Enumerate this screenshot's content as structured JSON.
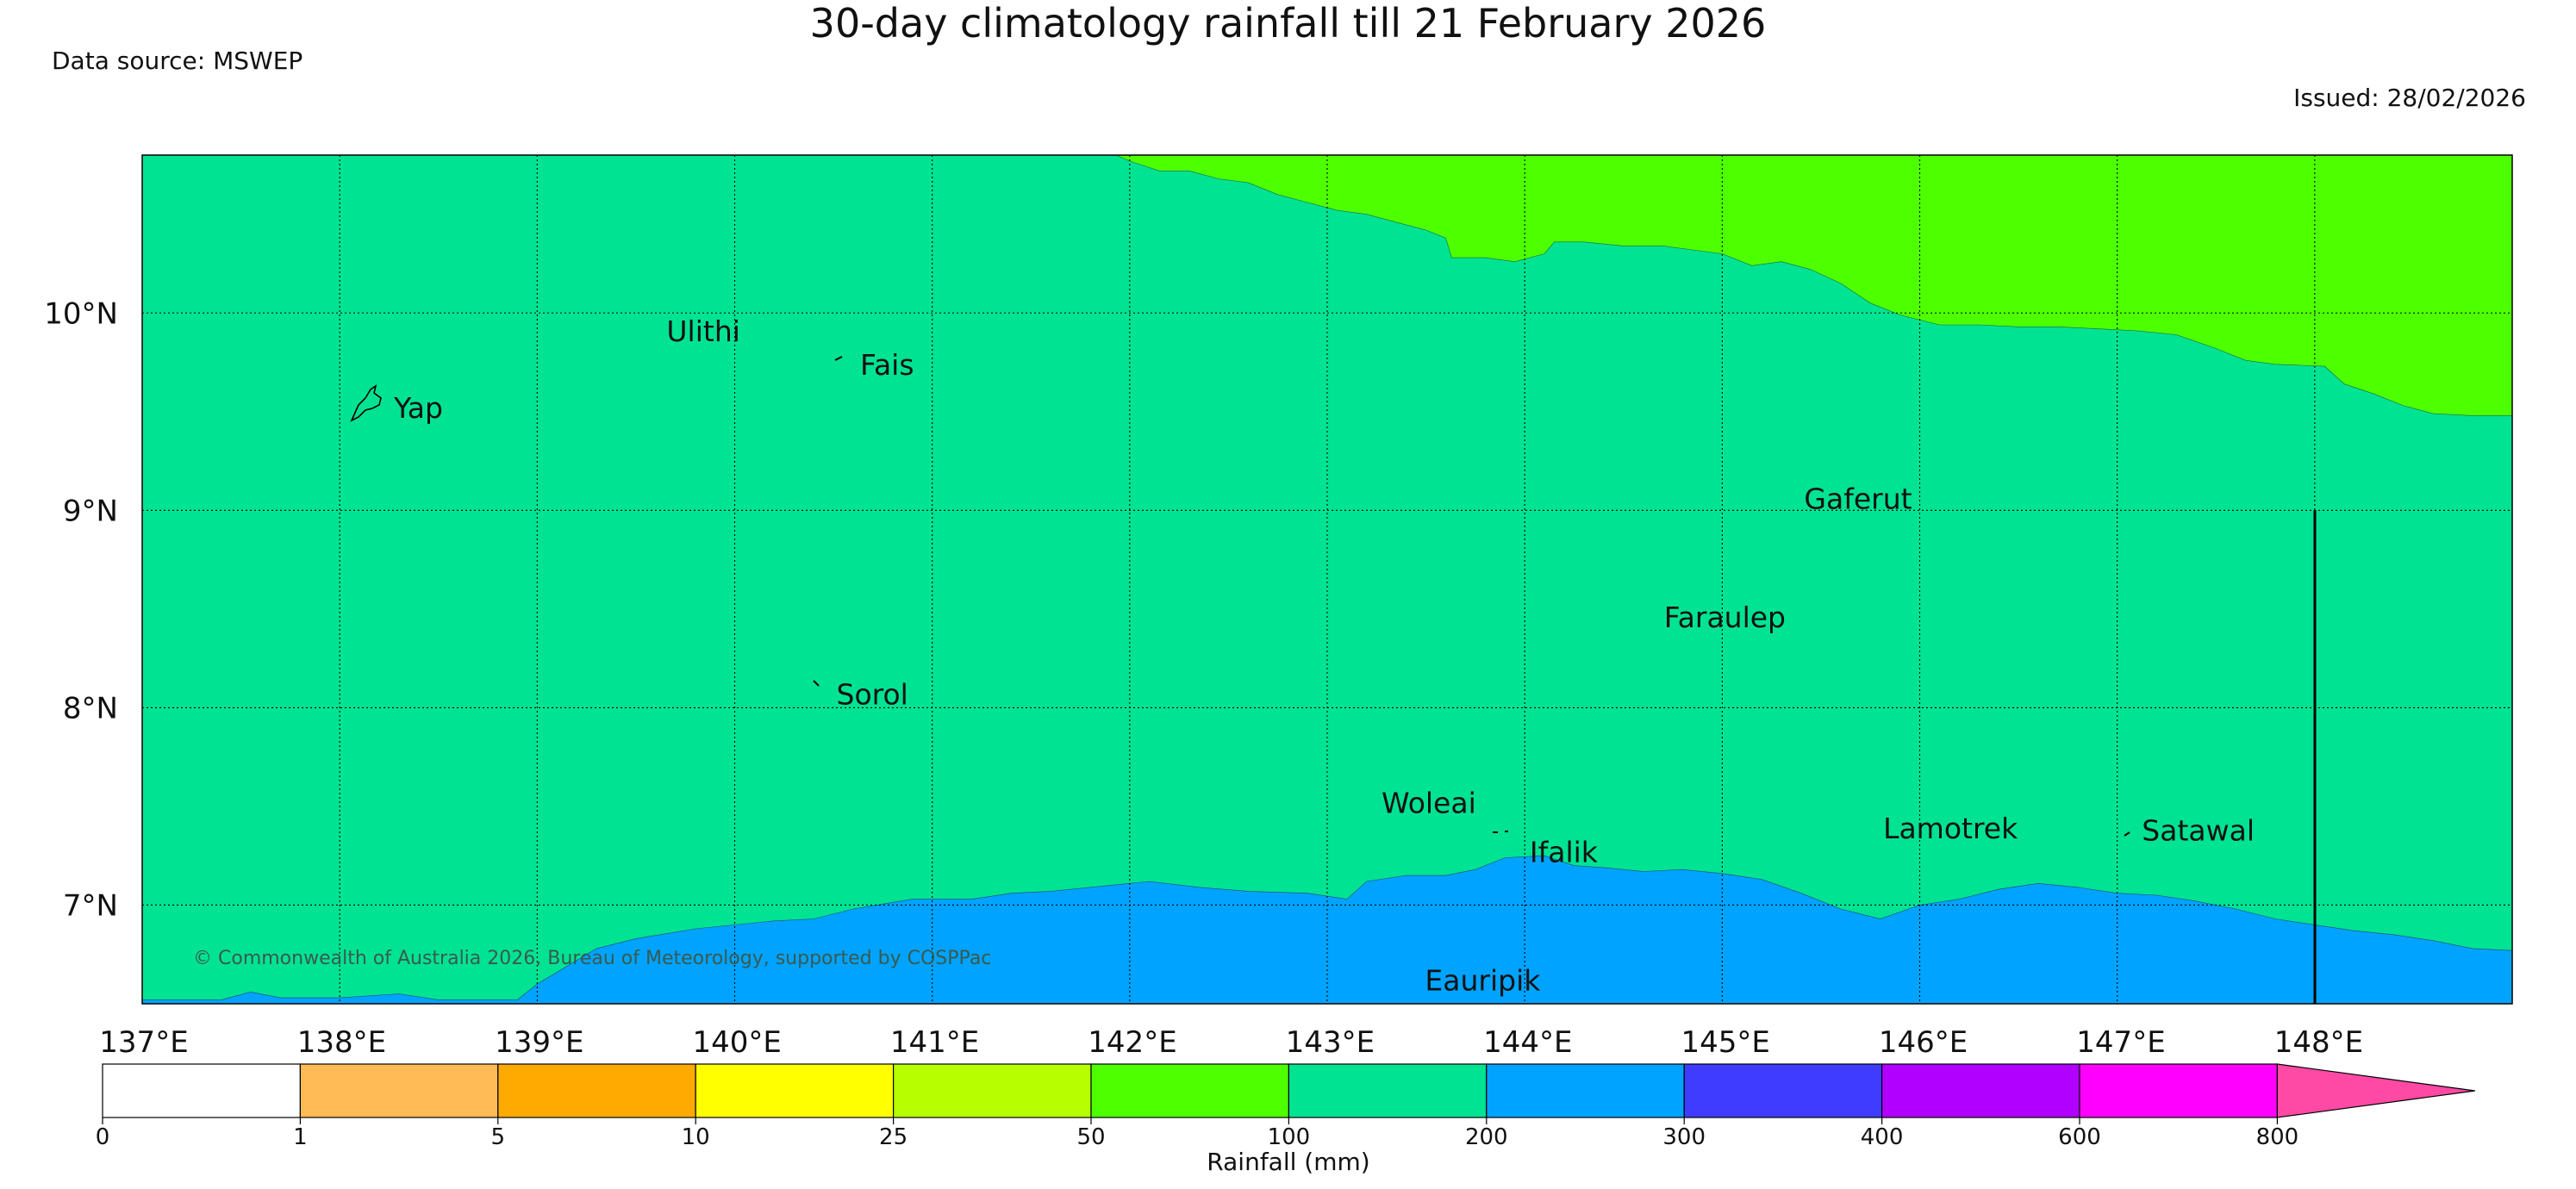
{
  "header": {
    "title": "30-day climatology rainfall till 21 February 2026",
    "source": "Data source: MSWEP",
    "issued": "Issued: 28/02/2026"
  },
  "map": {
    "lon_range": [
      137,
      149
    ],
    "lat_range": [
      6.5,
      10.8
    ],
    "lon_ticks": [
      {
        "value": 137,
        "label": "137°E"
      },
      {
        "value": 138,
        "label": "138°E"
      },
      {
        "value": 139,
        "label": "139°E"
      },
      {
        "value": 140,
        "label": "140°E"
      },
      {
        "value": 141,
        "label": "141°E"
      },
      {
        "value": 142,
        "label": "142°E"
      },
      {
        "value": 143,
        "label": "143°E"
      },
      {
        "value": 144,
        "label": "144°E"
      },
      {
        "value": 145,
        "label": "145°E"
      },
      {
        "value": 146,
        "label": "146°E"
      },
      {
        "value": 147,
        "label": "147°E"
      },
      {
        "value": 148,
        "label": "148°E"
      }
    ],
    "lat_ticks": [
      {
        "value": 10,
        "label": "10°N"
      },
      {
        "value": 9,
        "label": "9°N"
      },
      {
        "value": 8,
        "label": "8°N"
      },
      {
        "value": 7,
        "label": "7°N"
      }
    ],
    "places": [
      {
        "name": "Yap",
        "lon": 138.24,
        "lat": 9.52
      },
      {
        "name": "Ulithi",
        "lon": 139.62,
        "lat": 9.91
      },
      {
        "name": "Fais",
        "lon": 140.6,
        "lat": 9.74
      },
      {
        "name": "Gaferut",
        "lon": 145.38,
        "lat": 9.06
      },
      {
        "name": "Faraulep",
        "lon": 144.67,
        "lat": 8.46
      },
      {
        "name": "Sorol",
        "lon": 140.48,
        "lat": 8.07
      },
      {
        "name": "Woleai",
        "lon": 143.24,
        "lat": 7.52
      },
      {
        "name": "Ifalik",
        "lon": 143.99,
        "lat": 7.27
      },
      {
        "name": "Lamotrek",
        "lon": 145.78,
        "lat": 7.39
      },
      {
        "name": "Satawal",
        "lon": 147.09,
        "lat": 7.38
      },
      {
        "name": "Eauripik",
        "lon": 143.46,
        "lat": 6.62
      }
    ],
    "copyright": "© Commonwealth of Australia 2026, Bureau of Meteorology, supported by COSPPac",
    "zones": {
      "upper_boundary": [
        [
          141.93,
          10.8
        ],
        [
          142.0,
          10.77
        ],
        [
          142.15,
          10.72
        ],
        [
          142.3,
          10.72
        ],
        [
          142.45,
          10.68
        ],
        [
          142.6,
          10.66
        ],
        [
          142.75,
          10.6
        ],
        [
          142.9,
          10.56
        ],
        [
          143.05,
          10.52
        ],
        [
          143.2,
          10.5
        ],
        [
          143.35,
          10.46
        ],
        [
          143.5,
          10.42
        ],
        [
          143.6,
          10.38
        ],
        [
          143.63,
          10.28
        ],
        [
          143.8,
          10.28
        ],
        [
          143.95,
          10.26
        ],
        [
          144.1,
          10.3
        ],
        [
          144.15,
          10.36
        ],
        [
          144.3,
          10.36
        ],
        [
          144.5,
          10.34
        ],
        [
          144.7,
          10.34
        ],
        [
          144.85,
          10.32
        ],
        [
          145.0,
          10.3
        ],
        [
          145.15,
          10.24
        ],
        [
          145.3,
          10.26
        ],
        [
          145.45,
          10.22
        ],
        [
          145.6,
          10.15
        ],
        [
          145.75,
          10.05
        ],
        [
          145.9,
          9.99
        ],
        [
          146.1,
          9.94
        ],
        [
          146.3,
          9.94
        ],
        [
          146.5,
          9.93
        ],
        [
          146.7,
          9.93
        ],
        [
          146.9,
          9.92
        ],
        [
          147.1,
          9.91
        ],
        [
          147.3,
          9.89
        ],
        [
          147.5,
          9.82
        ],
        [
          147.65,
          9.76
        ],
        [
          147.8,
          9.74
        ],
        [
          148.05,
          9.73
        ],
        [
          148.15,
          9.64
        ],
        [
          148.3,
          9.59
        ],
        [
          148.45,
          9.53
        ],
        [
          148.6,
          9.49
        ],
        [
          148.8,
          9.48
        ],
        [
          149.0,
          9.48
        ]
      ],
      "lower_boundary": [
        [
          137.0,
          6.52
        ],
        [
          137.4,
          6.52
        ],
        [
          137.55,
          6.56
        ],
        [
          137.7,
          6.53
        ],
        [
          138.0,
          6.53
        ],
        [
          138.3,
          6.55
        ],
        [
          138.5,
          6.52
        ],
        [
          138.9,
          6.52
        ],
        [
          139.0,
          6.6
        ],
        [
          139.2,
          6.72
        ],
        [
          139.3,
          6.78
        ],
        [
          139.5,
          6.83
        ],
        [
          139.8,
          6.88
        ],
        [
          140.2,
          6.92
        ],
        [
          140.4,
          6.93
        ],
        [
          140.6,
          6.98
        ],
        [
          140.9,
          7.03
        ],
        [
          141.2,
          7.03
        ],
        [
          141.4,
          7.06
        ],
        [
          141.6,
          7.07
        ],
        [
          141.9,
          7.1
        ],
        [
          142.1,
          7.12
        ],
        [
          142.35,
          7.09
        ],
        [
          142.6,
          7.07
        ],
        [
          142.9,
          7.06
        ],
        [
          143.1,
          7.03
        ],
        [
          143.2,
          7.12
        ],
        [
          143.4,
          7.15
        ],
        [
          143.6,
          7.15
        ],
        [
          143.75,
          7.18
        ],
        [
          143.9,
          7.24
        ],
        [
          144.1,
          7.25
        ],
        [
          144.25,
          7.2
        ],
        [
          144.4,
          7.19
        ],
        [
          144.6,
          7.17
        ],
        [
          144.8,
          7.18
        ],
        [
          145.0,
          7.16
        ],
        [
          145.2,
          7.13
        ],
        [
          145.4,
          7.06
        ],
        [
          145.6,
          6.98
        ],
        [
          145.8,
          6.93
        ],
        [
          146.0,
          7.0
        ],
        [
          146.2,
          7.03
        ],
        [
          146.4,
          7.08
        ],
        [
          146.6,
          7.11
        ],
        [
          146.8,
          7.09
        ],
        [
          147.0,
          7.06
        ],
        [
          147.2,
          7.05
        ],
        [
          147.4,
          7.02
        ],
        [
          147.6,
          6.98
        ],
        [
          147.8,
          6.93
        ],
        [
          148.0,
          6.9
        ],
        [
          148.2,
          6.87
        ],
        [
          148.4,
          6.85
        ],
        [
          148.6,
          6.82
        ],
        [
          148.8,
          6.78
        ],
        [
          149.0,
          6.77
        ]
      ]
    }
  },
  "colorbar": {
    "title": "Rainfall (mm)",
    "ticks": [
      "0",
      "1",
      "5",
      "10",
      "25",
      "50",
      "100",
      "200",
      "300",
      "400",
      "600",
      "800"
    ],
    "colors": [
      "#ffffff",
      "#ffbb55",
      "#ffaa00",
      "#ffff00",
      "#b7ff00",
      "#4eff00",
      "#00e393",
      "#00a3ff",
      "#3f3cff",
      "#b100ff",
      "#ff00ff",
      "#ff4aa5"
    ]
  },
  "legend_map_colors": {
    "low": "#00a3ff",
    "mid": "#00e393",
    "high": "#4eff00"
  }
}
